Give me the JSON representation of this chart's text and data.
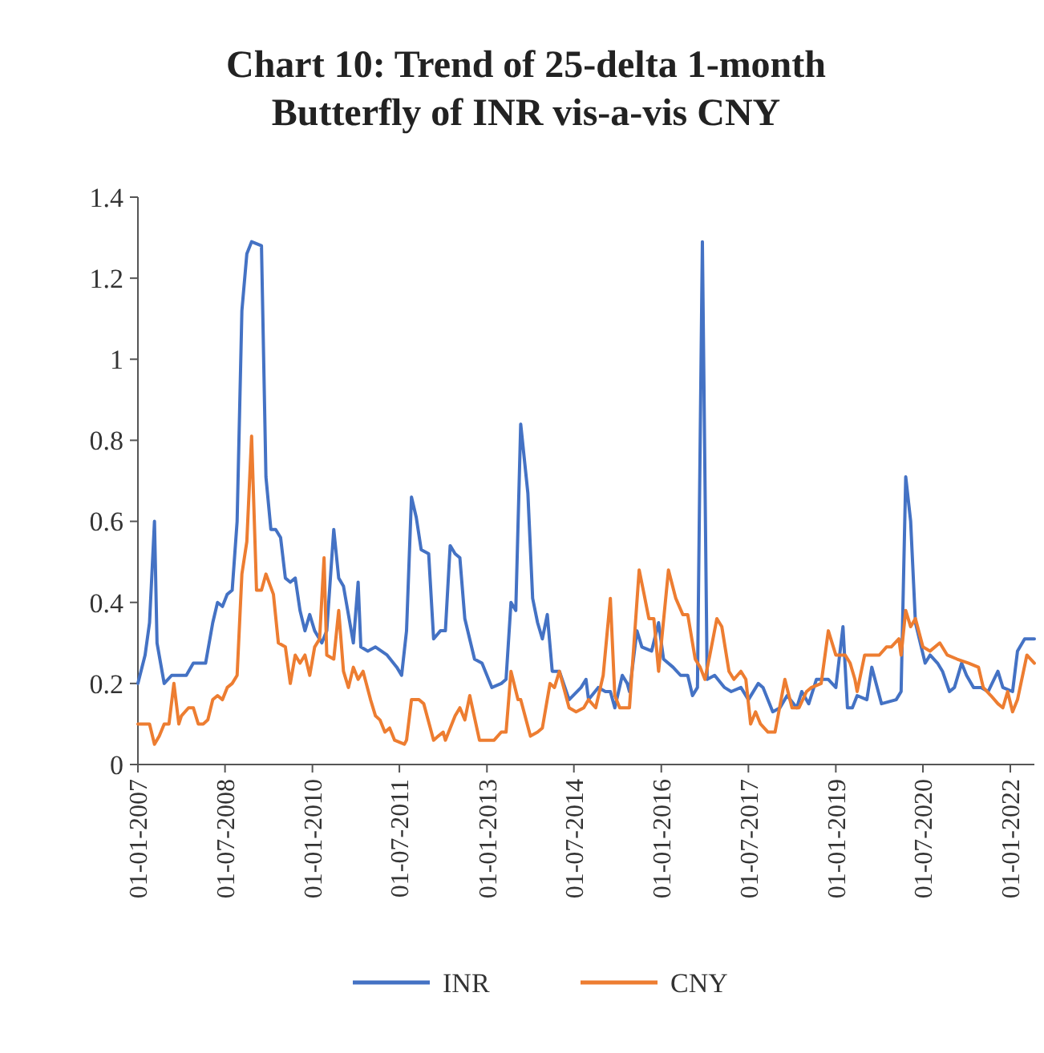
{
  "chart_data": {
    "type": "line",
    "title": "Chart 10: Trend of 25-delta 1-month Butterfly of INR vis-a-vis CNY",
    "xlim": [
      "2007-01-01",
      "2022-06-01"
    ],
    "xticks": [
      {
        "value": "2007-01-01",
        "label": "01-01-2007"
      },
      {
        "value": "2008-07-01",
        "label": "01-07-2008"
      },
      {
        "value": "2010-01-01",
        "label": "01-01-2010"
      },
      {
        "value": "2011-07-01",
        "label": "01-07-2011"
      },
      {
        "value": "2013-01-01",
        "label": "01-01-2013"
      },
      {
        "value": "2014-07-01",
        "label": "01-07-2014"
      },
      {
        "value": "2016-01-01",
        "label": "01-01-2016"
      },
      {
        "value": "2017-07-01",
        "label": "01-07-2017"
      },
      {
        "value": "2019-01-01",
        "label": "01-01-2019"
      },
      {
        "value": "2020-07-01",
        "label": "01-07-2020"
      },
      {
        "value": "2022-01-01",
        "label": "01-01-2022"
      }
    ],
    "ylim": [
      0,
      1.4
    ],
    "yticks": [
      0,
      0.2,
      0.4,
      0.6,
      0.8,
      1,
      1.2,
      1.4
    ],
    "grid": false,
    "legend": "bottom",
    "marker": "none",
    "line_style": "solid",
    "series": [
      {
        "name": "INR",
        "color": "#4472c4",
        "x": [
          "2007-01-01",
          "2007-02-15",
          "2007-03-15",
          "2007-04-15",
          "2007-05-01",
          "2007-06-15",
          "2007-08-01",
          "2007-11-01",
          "2007-12-15",
          "2008-03-01",
          "2008-04-15",
          "2008-05-15",
          "2008-06-15",
          "2008-07-15",
          "2008-08-15",
          "2008-09-15",
          "2008-10-15",
          "2008-11-15",
          "2008-12-15",
          "2009-02-15",
          "2009-03-15",
          "2009-04-15",
          "2009-05-15",
          "2009-06-15",
          "2009-07-15",
          "2009-08-15",
          "2009-09-15",
          "2009-10-15",
          "2009-11-15",
          "2009-12-15",
          "2010-01-15",
          "2010-03-01",
          "2010-04-01",
          "2010-05-15",
          "2010-06-15",
          "2010-07-15",
          "2010-08-15",
          "2010-09-15",
          "2010-10-15",
          "2010-11-01",
          "2010-12-15",
          "2011-02-01",
          "2011-04-15",
          "2011-06-15",
          "2011-07-15",
          "2011-08-15",
          "2011-09-15",
          "2011-10-15",
          "2011-11-15",
          "2012-01-01",
          "2012-02-01",
          "2012-03-15",
          "2012-04-15",
          "2012-05-15",
          "2012-06-15",
          "2012-07-15",
          "2012-08-15",
          "2012-10-15",
          "2012-12-01",
          "2013-02-01",
          "2013-04-01",
          "2013-05-01",
          "2013-06-01",
          "2013-07-01",
          "2013-08-01",
          "2013-09-15",
          "2013-10-15",
          "2013-11-15",
          "2013-12-15",
          "2014-01-15",
          "2014-02-15",
          "2014-04-01",
          "2014-06-01",
          "2014-08-15",
          "2014-09-15",
          "2014-10-01",
          "2014-12-01",
          "2015-01-15",
          "2015-02-15",
          "2015-03-15",
          "2015-05-01",
          "2015-06-01",
          "2015-06-15",
          "2015-08-01",
          "2015-09-01",
          "2015-11-01",
          "2015-12-15",
          "2016-01-15",
          "2016-03-15",
          "2016-05-01",
          "2016-06-15",
          "2016-07-15",
          "2016-08-15",
          "2016-09-15",
          "2016-10-15",
          "2016-12-01",
          "2017-02-01",
          "2017-03-15",
          "2017-05-15",
          "2017-07-01",
          "2017-09-01",
          "2017-10-01",
          "2017-12-01",
          "2018-01-15",
          "2018-03-01",
          "2018-05-01",
          "2018-06-01",
          "2018-07-15",
          "2018-09-01",
          "2018-11-15",
          "2019-01-01",
          "2019-02-15",
          "2019-03-15",
          "2019-04-15",
          "2019-05-15",
          "2019-07-15",
          "2019-08-15",
          "2019-10-15",
          "2020-01-15",
          "2020-02-15",
          "2020-03-15",
          "2020-04-15",
          "2020-05-15",
          "2020-07-15",
          "2020-08-15",
          "2020-10-01",
          "2020-11-01",
          "2020-12-15",
          "2021-01-15",
          "2021-03-01",
          "2021-04-01",
          "2021-05-15",
          "2021-07-01",
          "2021-08-15",
          "2021-10-15",
          "2021-11-15",
          "2022-01-15",
          "2022-02-15",
          "2022-04-01",
          "2022-06-01"
        ],
        "values": [
          0.2,
          0.27,
          0.35,
          0.6,
          0.3,
          0.2,
          0.22,
          0.22,
          0.25,
          0.25,
          0.35,
          0.4,
          0.39,
          0.42,
          0.43,
          0.6,
          1.12,
          1.26,
          1.29,
          1.28,
          0.71,
          0.58,
          0.58,
          0.56,
          0.46,
          0.45,
          0.46,
          0.38,
          0.33,
          0.37,
          0.33,
          0.3,
          0.33,
          0.58,
          0.46,
          0.44,
          0.37,
          0.3,
          0.45,
          0.29,
          0.28,
          0.29,
          0.27,
          0.24,
          0.22,
          0.33,
          0.66,
          0.61,
          0.53,
          0.52,
          0.31,
          0.33,
          0.33,
          0.54,
          0.52,
          0.51,
          0.36,
          0.26,
          0.25,
          0.19,
          0.2,
          0.21,
          0.4,
          0.38,
          0.84,
          0.67,
          0.41,
          0.35,
          0.31,
          0.37,
          0.23,
          0.23,
          0.16,
          0.19,
          0.21,
          0.16,
          0.19,
          0.18,
          0.18,
          0.14,
          0.22,
          0.2,
          0.18,
          0.33,
          0.29,
          0.28,
          0.35,
          0.26,
          0.24,
          0.22,
          0.22,
          0.17,
          0.19,
          1.29,
          0.21,
          0.22,
          0.19,
          0.18,
          0.19,
          0.16,
          0.2,
          0.19,
          0.13,
          0.14,
          0.17,
          0.14,
          0.18,
          0.15,
          0.21,
          0.21,
          0.19,
          0.34,
          0.14,
          0.14,
          0.17,
          0.16,
          0.24,
          0.15,
          0.16,
          0.18,
          0.71,
          0.6,
          0.35,
          0.25,
          0.27,
          0.25,
          0.23,
          0.18,
          0.19,
          0.25,
          0.22,
          0.19,
          0.19,
          0.18,
          0.23,
          0.19,
          0.18,
          0.28,
          0.31,
          0.31
        ]
      },
      {
        "name": "CNY",
        "color": "#ed7d31",
        "x": [
          "2007-01-01",
          "2007-02-01",
          "2007-03-15",
          "2007-04-15",
          "2007-05-15",
          "2007-06-15",
          "2007-07-15",
          "2007-08-15",
          "2007-09-15",
          "2007-10-01",
          "2007-11-15",
          "2007-12-15",
          "2008-01-15",
          "2008-02-15",
          "2008-03-15",
          "2008-04-15",
          "2008-05-15",
          "2008-06-15",
          "2008-07-15",
          "2008-08-15",
          "2008-09-15",
          "2008-10-15",
          "2008-11-15",
          "2008-12-15",
          "2009-01-15",
          "2009-02-15",
          "2009-03-15",
          "2009-05-01",
          "2009-06-01",
          "2009-07-15",
          "2009-08-15",
          "2009-09-15",
          "2009-10-15",
          "2009-11-15",
          "2009-12-15",
          "2010-01-15",
          "2010-02-15",
          "2010-03-15",
          "2010-04-01",
          "2010-05-15",
          "2010-06-15",
          "2010-07-15",
          "2010-08-15",
          "2010-09-15",
          "2010-10-15",
          "2010-11-15",
          "2011-01-01",
          "2011-02-01",
          "2011-03-01",
          "2011-04-01",
          "2011-05-01",
          "2011-06-01",
          "2011-08-01",
          "2011-08-15",
          "2011-09-15",
          "2011-11-01",
          "2011-12-01",
          "2012-02-01",
          "2012-03-01",
          "2012-04-01",
          "2012-04-15",
          "2012-06-15",
          "2012-07-15",
          "2012-08-15",
          "2012-09-15",
          "2012-11-15",
          "2013-01-15",
          "2013-02-15",
          "2013-04-01",
          "2013-05-01",
          "2013-06-01",
          "2013-07-15",
          "2013-08-01",
          "2013-10-01",
          "2013-11-15",
          "2013-12-15",
          "2014-02-01",
          "2014-03-01",
          "2014-04-01",
          "2014-06-01",
          "2014-07-15",
          "2014-09-01",
          "2014-10-01",
          "2014-11-15",
          "2015-01-01",
          "2015-02-15",
          "2015-03-15",
          "2015-04-15",
          "2015-06-15",
          "2015-08-15",
          "2015-09-15",
          "2015-10-15",
          "2015-11-15",
          "2015-12-15",
          "2016-02-15",
          "2016-04-01",
          "2016-05-15",
          "2016-06-15",
          "2016-08-01",
          "2016-09-01",
          "2016-10-01",
          "2016-11-01",
          "2016-12-15",
          "2017-01-15",
          "2017-03-01",
          "2017-04-01",
          "2017-05-15",
          "2017-06-15",
          "2017-07-15",
          "2017-08-15",
          "2017-09-15",
          "2017-11-01",
          "2017-12-15",
          "2018-02-15",
          "2018-04-01",
          "2018-05-15",
          "2018-07-01",
          "2018-08-01",
          "2018-10-01",
          "2018-11-15",
          "2019-01-01",
          "2019-03-01",
          "2019-04-01",
          "2019-05-01",
          "2019-05-15",
          "2019-07-01",
          "2019-08-15",
          "2019-10-01",
          "2019-11-15",
          "2019-12-15",
          "2020-02-01",
          "2020-02-15",
          "2020-03-15",
          "2020-04-15",
          "2020-05-15",
          "2020-07-01",
          "2020-08-15",
          "2020-10-15",
          "2020-12-01",
          "2021-02-01",
          "2021-04-15",
          "2021-06-15",
          "2021-07-15",
          "2021-09-01",
          "2021-10-15",
          "2021-11-15",
          "2021-12-15",
          "2022-01-15",
          "2022-02-15",
          "2022-04-15",
          "2022-06-01"
        ],
        "values": [
          0.1,
          0.1,
          0.1,
          0.05,
          0.07,
          0.1,
          0.1,
          0.2,
          0.1,
          0.12,
          0.14,
          0.14,
          0.1,
          0.1,
          0.11,
          0.16,
          0.17,
          0.16,
          0.19,
          0.2,
          0.22,
          0.47,
          0.55,
          0.81,
          0.43,
          0.43,
          0.47,
          0.42,
          0.3,
          0.29,
          0.2,
          0.27,
          0.25,
          0.27,
          0.22,
          0.29,
          0.31,
          0.51,
          0.27,
          0.26,
          0.38,
          0.23,
          0.19,
          0.24,
          0.21,
          0.23,
          0.16,
          0.12,
          0.11,
          0.08,
          0.09,
          0.06,
          0.05,
          0.06,
          0.16,
          0.16,
          0.15,
          0.06,
          0.07,
          0.08,
          0.06,
          0.12,
          0.14,
          0.11,
          0.17,
          0.06,
          0.06,
          0.06,
          0.08,
          0.08,
          0.23,
          0.16,
          0.16,
          0.07,
          0.08,
          0.09,
          0.2,
          0.19,
          0.23,
          0.14,
          0.13,
          0.14,
          0.16,
          0.14,
          0.22,
          0.41,
          0.17,
          0.14,
          0.14,
          0.48,
          0.42,
          0.36,
          0.36,
          0.23,
          0.48,
          0.41,
          0.37,
          0.37,
          0.26,
          0.24,
          0.21,
          0.27,
          0.36,
          0.34,
          0.23,
          0.21,
          0.23,
          0.21,
          0.1,
          0.13,
          0.1,
          0.08,
          0.08,
          0.21,
          0.14,
          0.14,
          0.18,
          0.19,
          0.2,
          0.33,
          0.27,
          0.27,
          0.25,
          0.21,
          0.18,
          0.27,
          0.27,
          0.27,
          0.29,
          0.29,
          0.31,
          0.27,
          0.38,
          0.34,
          0.36,
          0.29,
          0.28,
          0.3,
          0.27,
          0.26,
          0.25,
          0.24,
          0.19,
          0.17,
          0.15,
          0.14,
          0.18,
          0.13,
          0.16,
          0.27,
          0.25
        ]
      }
    ]
  }
}
